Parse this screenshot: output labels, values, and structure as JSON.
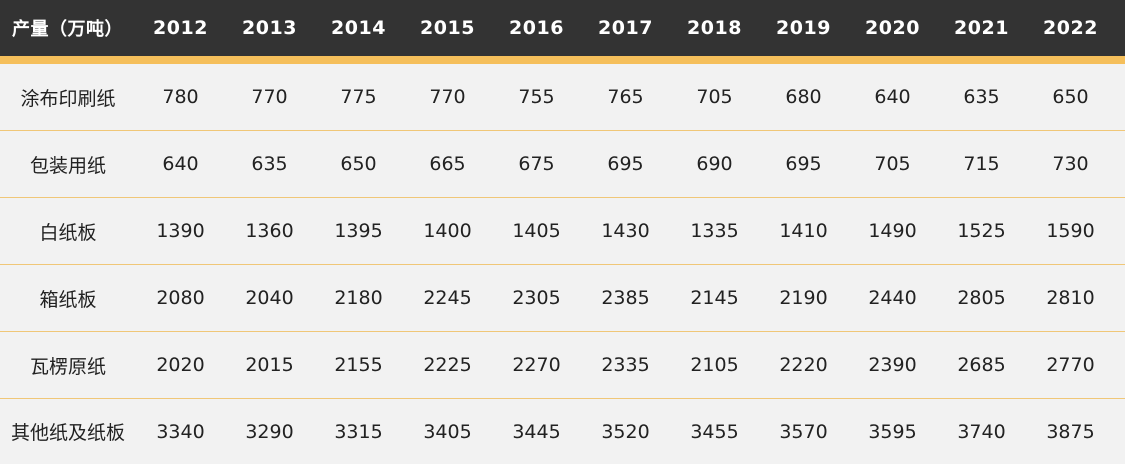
{
  "chart_data": {
    "type": "table",
    "header_label": "产量（万吨）",
    "years": [
      "2012",
      "2013",
      "2014",
      "2015",
      "2016",
      "2017",
      "2018",
      "2019",
      "2020",
      "2021",
      "2022"
    ],
    "rows": [
      {
        "name": "涂布印刷纸",
        "values": [
          780,
          770,
          775,
          770,
          755,
          765,
          705,
          680,
          640,
          635,
          650
        ]
      },
      {
        "name": "包装用纸",
        "values": [
          640,
          635,
          650,
          665,
          675,
          695,
          690,
          695,
          705,
          715,
          730
        ]
      },
      {
        "name": "白纸板",
        "values": [
          1390,
          1360,
          1395,
          1400,
          1405,
          1430,
          1335,
          1410,
          1490,
          1525,
          1590
        ]
      },
      {
        "name": "箱纸板",
        "values": [
          2080,
          2040,
          2180,
          2245,
          2305,
          2385,
          2145,
          2190,
          2440,
          2805,
          2810
        ]
      },
      {
        "name": "瓦楞原纸",
        "values": [
          2020,
          2015,
          2155,
          2225,
          2270,
          2335,
          2105,
          2220,
          2390,
          2685,
          2770
        ]
      },
      {
        "name": "其他纸及纸板",
        "values": [
          3340,
          3290,
          3315,
          3405,
          3445,
          3520,
          3455,
          3570,
          3595,
          3740,
          3875
        ]
      }
    ]
  },
  "colors": {
    "header_bg": "#333333",
    "accent": "#f5bf5b",
    "body_bg": "#f2f2f2",
    "divider": "#f0c778"
  }
}
